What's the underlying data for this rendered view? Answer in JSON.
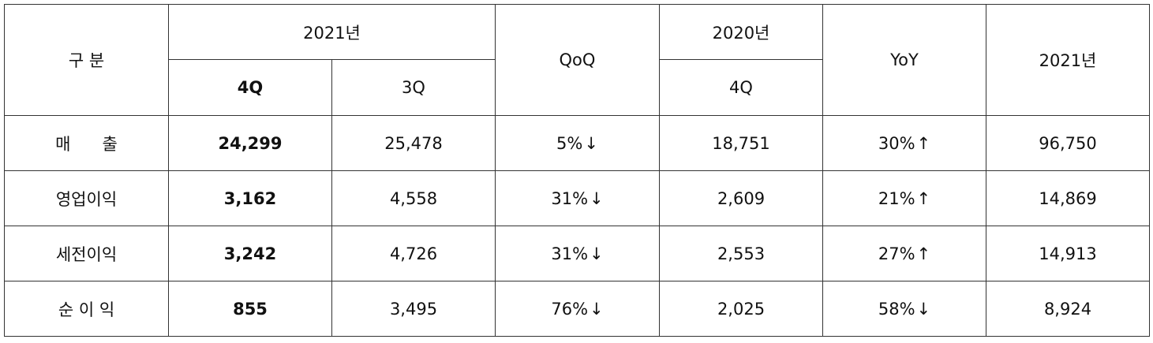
{
  "header": {
    "category": "구 분",
    "y2021_group": "2021년",
    "q4": "4Q",
    "q3": "3Q",
    "qoq": "QoQ",
    "y2020_group": "2020년",
    "q4_2020": "4Q",
    "yoy": "YoY",
    "y2021_total": "2021년"
  },
  "rows": [
    {
      "label": "매      출",
      "q4": "24,299",
      "q3": "25,478",
      "qoq": "5%",
      "qoq_arrow": "↓",
      "q4_2020": "18,751",
      "yoy": "30%",
      "yoy_arrow": "↑",
      "total": "96,750"
    },
    {
      "label": "영업이익",
      "q4": "3,162",
      "q3": "4,558",
      "qoq": "31%",
      "qoq_arrow": "↓",
      "q4_2020": "2,609",
      "yoy": "21%",
      "yoy_arrow": "↑",
      "total": "14,869"
    },
    {
      "label": "세전이익",
      "q4": "3,242",
      "q3": "4,726",
      "qoq": "31%",
      "qoq_arrow": "↓",
      "q4_2020": "2,553",
      "yoy": "27%",
      "yoy_arrow": "↑",
      "total": "14,913"
    },
    {
      "label": "순 이 익",
      "q4": "855",
      "q3": "3,495",
      "qoq": "76%",
      "qoq_arrow": "↓",
      "q4_2020": "2,025",
      "yoy": "58%",
      "yoy_arrow": "↓",
      "total": "8,924"
    }
  ]
}
